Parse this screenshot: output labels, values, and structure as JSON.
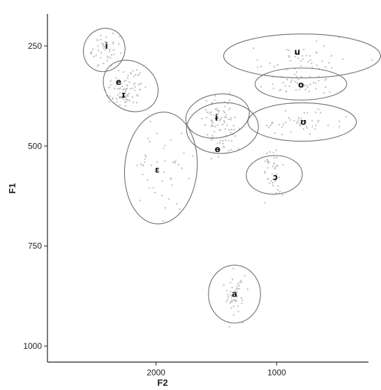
{
  "chart_data": {
    "type": "scatter",
    "title": "",
    "xlabel": "F2",
    "ylabel": "F1",
    "x_reversed": true,
    "y_reversed": true,
    "xlim": [
      2900,
      240
    ],
    "ylim": [
      170,
      1040
    ],
    "x_ticks": [
      2000,
      1000
    ],
    "y_ticks": [
      250,
      500,
      750,
      1000
    ],
    "grid": false,
    "colors": {
      "ellipse": "#6e6e6e",
      "points": "#bdbdbd",
      "axis": "#222222"
    },
    "series": [
      {
        "name": "i",
        "label_at": [
          2410,
          250
        ],
        "ellipse": {
          "cx": 2430,
          "cy": 260,
          "rx": 170,
          "ry": 55,
          "angle_deg": 28
        },
        "spread": [
          150,
          45
        ]
      },
      {
        "name": "e",
        "label_at": [
          2310,
          340
        ],
        "ellipse": {
          "cx": 2210,
          "cy": 350,
          "rx": 240,
          "ry": 60,
          "angle_deg": 35
        },
        "spread": [
          200,
          50
        ]
      },
      {
        "name": "ɪ",
        "label_at": [
          2270,
          372
        ],
        "ellipse": null,
        "spread": [
          120,
          40
        ]
      },
      {
        "name": "ɛ",
        "label_at": [
          1990,
          560
        ],
        "ellipse": {
          "cx": 1960,
          "cy": 555,
          "rx": 300,
          "ry": 140,
          "angle_deg": 5
        },
        "spread": [
          250,
          110
        ]
      },
      {
        "name": "ɨ",
        "label_at": [
          1500,
          430
        ],
        "ellipse": {
          "cx": 1490,
          "cy": 425,
          "rx": 180,
          "ry": 80,
          "angle_deg": 80
        },
        "spread": [
          130,
          70
        ]
      },
      {
        "name": "ɵ",
        "label_at": [
          1490,
          508
        ],
        "ellipse": {
          "cx": 1450,
          "cy": 455,
          "rx": 210,
          "ry": 90,
          "angle_deg": 86
        },
        "spread": [
          160,
          80
        ]
      },
      {
        "name": "ɔ",
        "label_at": [
          1010,
          578
        ],
        "ellipse": {
          "cx": 1020,
          "cy": 572,
          "rx": 160,
          "ry": 70,
          "angle_deg": 88
        },
        "spread": [
          100,
          60
        ]
      },
      {
        "name": "u",
        "label_at": [
          830,
          265
        ],
        "ellipse": {
          "cx": 790,
          "cy": 275,
          "rx": 650,
          "ry": 55,
          "angle_deg": 0
        },
        "spread": [
          450,
          40
        ]
      },
      {
        "name": "o",
        "label_at": [
          800,
          347
        ],
        "ellipse": {
          "cx": 800,
          "cy": 345,
          "rx": 380,
          "ry": 40,
          "angle_deg": 0
        },
        "spread": [
          300,
          30
        ]
      },
      {
        "name": "ʊ",
        "label_at": [
          780,
          440
        ],
        "ellipse": {
          "cx": 790,
          "cy": 440,
          "rx": 450,
          "ry": 48,
          "angle_deg": 0
        },
        "spread": [
          350,
          35
        ]
      },
      {
        "name": "a",
        "label_at": [
          1350,
          870
        ],
        "ellipse": {
          "cx": 1350,
          "cy": 870,
          "rx": 240,
          "ry": 65,
          "angle_deg": 90
        },
        "spread": [
          100,
          70
        ]
      }
    ]
  }
}
